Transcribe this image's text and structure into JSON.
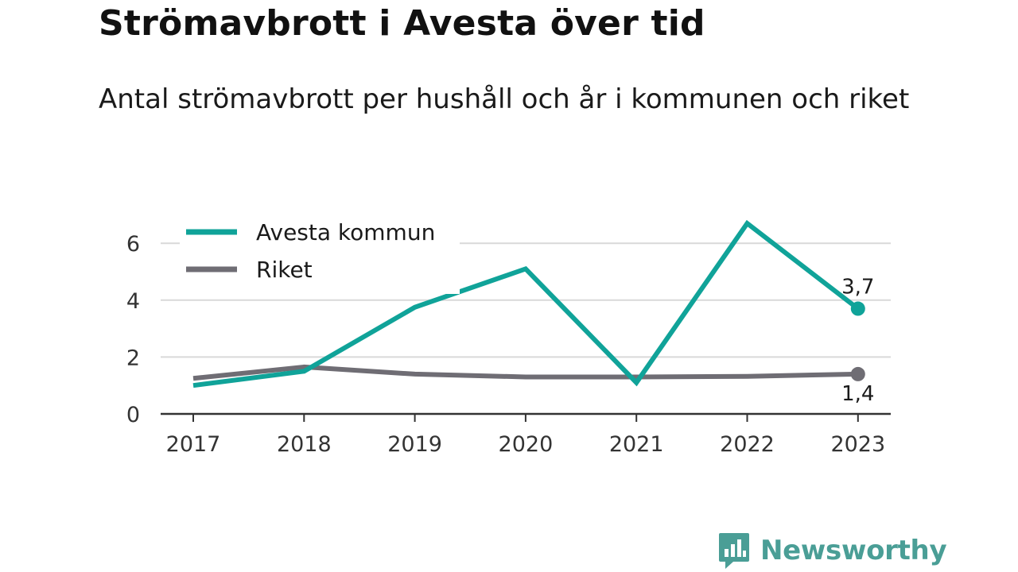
{
  "chart_data": {
    "type": "line",
    "title": "Strömavbrott i Avesta över tid",
    "subtitle": "Antal strömavbrott per hushåll och år i kommunen och riket",
    "x": [
      "2017",
      "2018",
      "2019",
      "2020",
      "2021",
      "2022",
      "2023"
    ],
    "series": [
      {
        "name": "Avesta kommun",
        "color": "#10a399",
        "values": [
          1.0,
          1.5,
          3.75,
          5.1,
          1.1,
          6.7,
          3.7
        ],
        "end_label": "3,7"
      },
      {
        "name": "Riket",
        "color": "#6f6d74",
        "values": [
          1.25,
          1.65,
          1.4,
          1.3,
          1.3,
          1.32,
          1.4
        ],
        "end_label": "1,4"
      }
    ],
    "y_ticks": [
      "0",
      "2",
      "4",
      "6"
    ],
    "ylim": [
      0,
      7.2
    ],
    "grid": true,
    "legend": "top-left"
  },
  "brand": {
    "name": "Newsworthy",
    "logo_icon": "bar-chart-speech-bubble-icon",
    "color": "#4a9e96"
  }
}
